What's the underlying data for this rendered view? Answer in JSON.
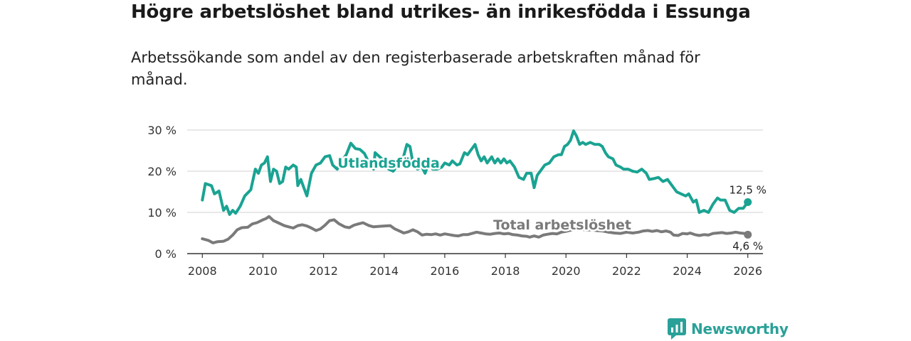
{
  "header": {
    "title": "Högre arbetslöshet bland utrikes- än inrikesfödda i Essunga",
    "subtitle": "Arbetssökande som andel av den registerbaserade arbetskraften månad för månad."
  },
  "brand": {
    "name": "Newsworthy"
  },
  "colors": {
    "foreign": "#1aa392",
    "total": "#7a7a7a",
    "grid": "#d9d9d9",
    "axis": "#333333"
  },
  "chart_data": {
    "type": "line",
    "title": "Högre arbetslöshet bland utrikes- än inrikesfödda i Essunga",
    "subtitle": "Arbetssökande som andel av den registerbaserade arbetskraften månad för månad.",
    "xlabel": "",
    "ylabel": "",
    "xlim": [
      2007.5,
      2026.5
    ],
    "ylim": [
      0,
      30
    ],
    "y_ticks": [
      0,
      10,
      20,
      30
    ],
    "y_tick_labels": [
      "0 %",
      "10 %",
      "20 %",
      "30 %"
    ],
    "x_ticks": [
      2008,
      2010,
      2012,
      2014,
      2016,
      2018,
      2020,
      2022,
      2024,
      2026
    ],
    "x_tick_labels": [
      "2008",
      "2010",
      "2012",
      "2014",
      "2016",
      "2018",
      "2020",
      "2022",
      "2024",
      "2026"
    ],
    "grid": true,
    "series": [
      {
        "name": "Utlandsfödda",
        "end_label": "12,5 %",
        "points": [
          [
            2008.0,
            13.0
          ],
          [
            2008.1,
            17.0
          ],
          [
            2008.3,
            16.5
          ],
          [
            2008.4,
            14.5
          ],
          [
            2008.55,
            15.2
          ],
          [
            2008.7,
            10.5
          ],
          [
            2008.8,
            11.5
          ],
          [
            2008.9,
            9.5
          ],
          [
            2009.0,
            10.5
          ],
          [
            2009.1,
            9.8
          ],
          [
            2009.25,
            11.5
          ],
          [
            2009.4,
            14.0
          ],
          [
            2009.6,
            15.5
          ],
          [
            2009.75,
            20.5
          ],
          [
            2009.85,
            19.5
          ],
          [
            2009.95,
            21.5
          ],
          [
            2010.05,
            22.0
          ],
          [
            2010.15,
            23.5
          ],
          [
            2010.25,
            17.5
          ],
          [
            2010.35,
            20.5
          ],
          [
            2010.45,
            20.0
          ],
          [
            2010.55,
            17.0
          ],
          [
            2010.65,
            17.5
          ],
          [
            2010.75,
            21.0
          ],
          [
            2010.85,
            20.5
          ],
          [
            2011.0,
            21.5
          ],
          [
            2011.1,
            21.0
          ],
          [
            2011.15,
            16.5
          ],
          [
            2011.25,
            18.0
          ],
          [
            2011.35,
            16.0
          ],
          [
            2011.45,
            14.0
          ],
          [
            2011.6,
            19.5
          ],
          [
            2011.75,
            21.5
          ],
          [
            2011.9,
            22.0
          ],
          [
            2012.05,
            23.5
          ],
          [
            2012.2,
            23.8
          ],
          [
            2012.3,
            21.5
          ],
          [
            2012.45,
            20.5
          ],
          [
            2012.6,
            22.5
          ],
          [
            2012.75,
            24.0
          ],
          [
            2012.9,
            26.8
          ],
          [
            2013.05,
            25.5
          ],
          [
            2013.2,
            25.3
          ],
          [
            2013.35,
            24.3
          ],
          [
            2013.5,
            22.0
          ],
          [
            2013.65,
            20.5
          ],
          [
            2013.7,
            24.5
          ],
          [
            2013.85,
            23.5
          ],
          [
            2014.0,
            22.5
          ],
          [
            2014.15,
            20.5
          ],
          [
            2014.3,
            20.0
          ],
          [
            2014.45,
            21.5
          ],
          [
            2014.6,
            22.5
          ],
          [
            2014.75,
            26.5
          ],
          [
            2014.85,
            26.0
          ],
          [
            2014.95,
            22.0
          ],
          [
            2015.1,
            20.5
          ],
          [
            2015.25,
            21.0
          ],
          [
            2015.35,
            19.5
          ],
          [
            2015.5,
            22.5
          ],
          [
            2015.6,
            20.5
          ],
          [
            2015.75,
            20.5
          ],
          [
            2015.9,
            21.0
          ],
          [
            2016.0,
            22.0
          ],
          [
            2016.15,
            21.5
          ],
          [
            2016.25,
            22.5
          ],
          [
            2016.4,
            21.5
          ],
          [
            2016.5,
            21.8
          ],
          [
            2016.65,
            24.5
          ],
          [
            2016.75,
            24.0
          ],
          [
            2016.85,
            25.0
          ],
          [
            2017.0,
            26.5
          ],
          [
            2017.1,
            24.0
          ],
          [
            2017.2,
            22.5
          ],
          [
            2017.3,
            23.5
          ],
          [
            2017.4,
            22.0
          ],
          [
            2017.55,
            23.5
          ],
          [
            2017.65,
            22.0
          ],
          [
            2017.75,
            23.0
          ],
          [
            2017.85,
            22.0
          ],
          [
            2017.95,
            23.0
          ],
          [
            2018.05,
            22.0
          ],
          [
            2018.15,
            22.5
          ],
          [
            2018.3,
            21.0
          ],
          [
            2018.45,
            18.5
          ],
          [
            2018.6,
            18.0
          ],
          [
            2018.7,
            19.5
          ],
          [
            2018.85,
            19.5
          ],
          [
            2018.95,
            16.0
          ],
          [
            2019.05,
            19.0
          ],
          [
            2019.2,
            20.5
          ],
          [
            2019.3,
            21.5
          ],
          [
            2019.45,
            22.0
          ],
          [
            2019.6,
            23.5
          ],
          [
            2019.75,
            24.0
          ],
          [
            2019.85,
            24.0
          ],
          [
            2019.95,
            26.0
          ],
          [
            2020.05,
            26.5
          ],
          [
            2020.15,
            27.5
          ],
          [
            2020.25,
            29.8
          ],
          [
            2020.35,
            28.5
          ],
          [
            2020.45,
            26.5
          ],
          [
            2020.55,
            27.0
          ],
          [
            2020.65,
            26.5
          ],
          [
            2020.8,
            27.0
          ],
          [
            2020.95,
            26.5
          ],
          [
            2021.1,
            26.5
          ],
          [
            2021.2,
            26.0
          ],
          [
            2021.3,
            24.5
          ],
          [
            2021.4,
            23.5
          ],
          [
            2021.55,
            23.0
          ],
          [
            2021.65,
            21.5
          ],
          [
            2021.8,
            21.0
          ],
          [
            2021.9,
            20.5
          ],
          [
            2022.05,
            20.5
          ],
          [
            2022.2,
            20.0
          ],
          [
            2022.35,
            19.8
          ],
          [
            2022.5,
            20.5
          ],
          [
            2022.65,
            19.5
          ],
          [
            2022.75,
            18.0
          ],
          [
            2022.9,
            18.2
          ],
          [
            2023.05,
            18.5
          ],
          [
            2023.2,
            17.5
          ],
          [
            2023.35,
            18.0
          ],
          [
            2023.5,
            16.5
          ],
          [
            2023.65,
            15.0
          ],
          [
            2023.8,
            14.5
          ],
          [
            2023.95,
            14.0
          ],
          [
            2024.05,
            14.5
          ],
          [
            2024.2,
            12.5
          ],
          [
            2024.3,
            13.0
          ],
          [
            2024.4,
            10.0
          ],
          [
            2024.55,
            10.5
          ],
          [
            2024.7,
            10.0
          ],
          [
            2024.85,
            12.0
          ],
          [
            2025.0,
            13.5
          ],
          [
            2025.1,
            13.0
          ],
          [
            2025.25,
            13.0
          ],
          [
            2025.4,
            10.5
          ],
          [
            2025.55,
            10.0
          ],
          [
            2025.7,
            11.0
          ],
          [
            2025.85,
            11.0
          ],
          [
            2026.0,
            12.5
          ]
        ]
      },
      {
        "name": "Total arbetslöshet",
        "end_label": "4,6 %",
        "points": [
          [
            2008.0,
            3.6
          ],
          [
            2008.2,
            3.2
          ],
          [
            2008.35,
            2.6
          ],
          [
            2008.5,
            2.9
          ],
          [
            2008.7,
            3.0
          ],
          [
            2008.85,
            3.5
          ],
          [
            2009.0,
            4.5
          ],
          [
            2009.15,
            5.8
          ],
          [
            2009.3,
            6.3
          ],
          [
            2009.5,
            6.4
          ],
          [
            2009.65,
            7.2
          ],
          [
            2009.8,
            7.5
          ],
          [
            2010.0,
            8.2
          ],
          [
            2010.1,
            8.5
          ],
          [
            2010.2,
            9.0
          ],
          [
            2010.35,
            8.0
          ],
          [
            2010.5,
            7.5
          ],
          [
            2010.7,
            6.8
          ],
          [
            2010.85,
            6.5
          ],
          [
            2011.0,
            6.2
          ],
          [
            2011.15,
            6.8
          ],
          [
            2011.3,
            7.0
          ],
          [
            2011.45,
            6.7
          ],
          [
            2011.6,
            6.2
          ],
          [
            2011.75,
            5.6
          ],
          [
            2011.9,
            6.0
          ],
          [
            2012.05,
            6.9
          ],
          [
            2012.2,
            8.0
          ],
          [
            2012.35,
            8.2
          ],
          [
            2012.5,
            7.3
          ],
          [
            2012.7,
            6.5
          ],
          [
            2012.85,
            6.3
          ],
          [
            2013.0,
            6.9
          ],
          [
            2013.15,
            7.2
          ],
          [
            2013.3,
            7.5
          ],
          [
            2013.5,
            6.8
          ],
          [
            2013.65,
            6.5
          ],
          [
            2013.8,
            6.6
          ],
          [
            2014.0,
            6.7
          ],
          [
            2014.2,
            6.8
          ],
          [
            2014.35,
            6.0
          ],
          [
            2014.5,
            5.5
          ],
          [
            2014.65,
            5.0
          ],
          [
            2014.8,
            5.3
          ],
          [
            2014.95,
            5.8
          ],
          [
            2015.1,
            5.3
          ],
          [
            2015.25,
            4.5
          ],
          [
            2015.4,
            4.7
          ],
          [
            2015.55,
            4.6
          ],
          [
            2015.7,
            4.8
          ],
          [
            2015.85,
            4.5
          ],
          [
            2016.0,
            4.8
          ],
          [
            2016.15,
            4.6
          ],
          [
            2016.3,
            4.4
          ],
          [
            2016.45,
            4.3
          ],
          [
            2016.6,
            4.6
          ],
          [
            2016.75,
            4.6
          ],
          [
            2016.9,
            4.9
          ],
          [
            2017.05,
            5.2
          ],
          [
            2017.2,
            5.0
          ],
          [
            2017.35,
            4.8
          ],
          [
            2017.5,
            4.7
          ],
          [
            2017.65,
            4.9
          ],
          [
            2017.8,
            5.0
          ],
          [
            2017.95,
            4.8
          ],
          [
            2018.1,
            4.9
          ],
          [
            2018.25,
            4.6
          ],
          [
            2018.4,
            4.5
          ],
          [
            2018.55,
            4.3
          ],
          [
            2018.7,
            4.2
          ],
          [
            2018.8,
            4.0
          ],
          [
            2018.95,
            4.3
          ],
          [
            2019.1,
            4.0
          ],
          [
            2019.25,
            4.5
          ],
          [
            2019.4,
            4.7
          ],
          [
            2019.55,
            4.9
          ],
          [
            2019.7,
            4.8
          ],
          [
            2019.85,
            5.2
          ],
          [
            2020.0,
            5.4
          ],
          [
            2020.2,
            5.8
          ],
          [
            2020.35,
            6.2
          ],
          [
            2020.5,
            5.9
          ],
          [
            2020.7,
            5.7
          ],
          [
            2020.85,
            5.8
          ],
          [
            2021.0,
            5.6
          ],
          [
            2021.2,
            5.5
          ],
          [
            2021.4,
            5.2
          ],
          [
            2021.6,
            5.0
          ],
          [
            2021.8,
            4.9
          ],
          [
            2022.0,
            5.2
          ],
          [
            2022.2,
            5.0
          ],
          [
            2022.4,
            5.2
          ],
          [
            2022.55,
            5.5
          ],
          [
            2022.7,
            5.6
          ],
          [
            2022.85,
            5.4
          ],
          [
            2023.0,
            5.6
          ],
          [
            2023.15,
            5.3
          ],
          [
            2023.3,
            5.5
          ],
          [
            2023.45,
            5.2
          ],
          [
            2023.55,
            4.5
          ],
          [
            2023.7,
            4.4
          ],
          [
            2023.85,
            4.9
          ],
          [
            2024.0,
            4.8
          ],
          [
            2024.1,
            5.0
          ],
          [
            2024.25,
            4.6
          ],
          [
            2024.4,
            4.4
          ],
          [
            2024.55,
            4.6
          ],
          [
            2024.7,
            4.5
          ],
          [
            2024.85,
            4.9
          ],
          [
            2025.0,
            5.0
          ],
          [
            2025.15,
            5.1
          ],
          [
            2025.3,
            4.9
          ],
          [
            2025.45,
            5.0
          ],
          [
            2025.6,
            5.2
          ],
          [
            2025.75,
            5.0
          ],
          [
            2025.9,
            4.9
          ],
          [
            2026.0,
            4.6
          ]
        ]
      }
    ]
  }
}
